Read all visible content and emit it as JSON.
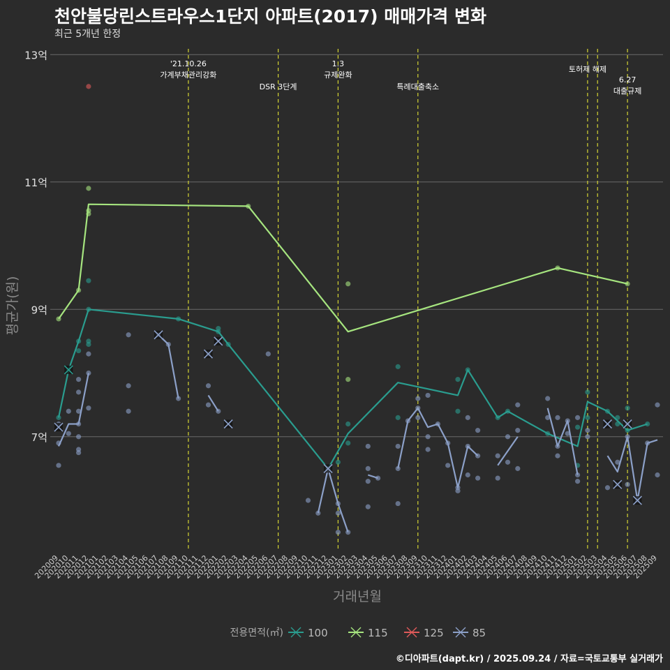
{
  "title": "천안불당린스트라우스1단지 아파트(2017) 매매가격 변화",
  "subtitle": "최근 5개년 한정",
  "caption": "©디아파트(dapt.kr) / 2025.09.24 / 자료=국토교통부 실거래가",
  "chart_data": {
    "type": "line",
    "xlabel": "거래년월",
    "ylabel": "평균가(원)",
    "x_categories": [
      "202009",
      "202010",
      "202011",
      "202012",
      "202101",
      "202102",
      "202103",
      "202104",
      "202105",
      "202106",
      "202107",
      "202108",
      "202109",
      "202110",
      "202111",
      "202112",
      "202201",
      "202202",
      "202203",
      "202204",
      "202205",
      "202206",
      "202207",
      "202208",
      "202209",
      "202210",
      "202211",
      "202212",
      "202301",
      "202302",
      "202303",
      "202304",
      "202305",
      "202306",
      "202307",
      "202308",
      "202309",
      "202310",
      "202311",
      "202312",
      "202401",
      "202402",
      "202403",
      "202404",
      "202405",
      "202406",
      "202407",
      "202408",
      "202409",
      "202410",
      "202411",
      "202412",
      "202501",
      "202502",
      "202503",
      "202504",
      "202505",
      "202506",
      "202507",
      "202508",
      "202509"
    ],
    "y_ticks": [
      {
        "value": 7,
        "label": "7억"
      },
      {
        "value": 9,
        "label": "9억"
      },
      {
        "value": 11,
        "label": "11억"
      },
      {
        "value": 13,
        "label": "13억"
      }
    ],
    "ylim": [
      5.2,
      13.2
    ],
    "grid": true,
    "legend": {
      "title": "전용면적(㎡)",
      "position": "bottom"
    },
    "series": [
      {
        "name": "100",
        "color": "#2a9d8f",
        "line": [
          [
            "202009",
            7.3
          ],
          [
            "202010",
            8.05
          ],
          [
            "202011",
            8.5
          ],
          [
            "202012",
            9.0
          ],
          [
            "202109",
            8.85
          ],
          [
            "202201",
            8.65
          ],
          [
            "202202",
            8.45
          ],
          [
            "202212",
            6.5
          ],
          [
            "202302",
            7.05
          ],
          [
            "202307",
            7.85
          ],
          [
            "202401",
            7.65
          ],
          [
            "202402",
            8.05
          ],
          [
            "202405",
            7.3
          ],
          [
            "202406",
            7.4
          ],
          [
            "202410",
            7.05
          ],
          [
            "202501",
            6.85
          ],
          [
            "202502",
            7.55
          ],
          [
            "202504",
            7.4
          ],
          [
            "202506",
            7.1
          ],
          [
            "202508",
            7.2
          ]
        ],
        "points": [
          [
            "202009",
            7.3
          ],
          [
            "202010",
            8.05
          ],
          [
            "202011",
            8.5
          ],
          [
            "202011",
            8.35
          ],
          [
            "202012",
            9.0
          ],
          [
            "202012",
            9.45
          ],
          [
            "202012",
            8.5
          ],
          [
            "202012",
            8.45
          ],
          [
            "202109",
            8.85
          ],
          [
            "202201",
            8.65
          ],
          [
            "202201",
            8.7
          ],
          [
            "202202",
            8.45
          ],
          [
            "202212",
            6.5
          ],
          [
            "202301",
            6.6
          ],
          [
            "202302",
            7.2
          ],
          [
            "202302",
            6.9
          ],
          [
            "202307",
            8.1
          ],
          [
            "202307",
            7.3
          ],
          [
            "202401",
            7.9
          ],
          [
            "202401",
            7.4
          ],
          [
            "202402",
            8.05
          ],
          [
            "202405",
            7.3
          ],
          [
            "202406",
            7.4
          ],
          [
            "202410",
            7.05
          ],
          [
            "202501",
            6.55
          ],
          [
            "202501",
            7.15
          ],
          [
            "202502",
            7.7
          ],
          [
            "202502",
            7.3
          ],
          [
            "202504",
            7.4
          ],
          [
            "202505",
            7.3
          ],
          [
            "202505",
            7.2
          ],
          [
            "202506",
            7.45
          ],
          [
            "202506",
            7.1
          ],
          [
            "202508",
            7.2
          ]
        ],
        "crosses": [
          [
            "202010",
            8.05
          ]
        ]
      },
      {
        "name": "115",
        "color": "#a6e57f",
        "line": [
          [
            "202009",
            8.85
          ],
          [
            "202011",
            9.3
          ],
          [
            "202012",
            10.65
          ],
          [
            "202204",
            10.62
          ],
          [
            "202302",
            8.65
          ],
          [
            "202411",
            9.65
          ],
          [
            "202506",
            9.4
          ]
        ],
        "points": [
          [
            "202009",
            8.85
          ],
          [
            "202011",
            9.3
          ],
          [
            "202012",
            10.55
          ],
          [
            "202012",
            10.5
          ],
          [
            "202012",
            10.9
          ],
          [
            "202204",
            10.62
          ],
          [
            "202302",
            9.4
          ],
          [
            "202302",
            7.9
          ],
          [
            "202411",
            9.65
          ],
          [
            "202506",
            9.4
          ]
        ],
        "crosses": []
      },
      {
        "name": "125",
        "color": "#e05a5a",
        "line": [],
        "points": [
          [
            "202012",
            12.5
          ]
        ],
        "crosses": []
      },
      {
        "name": "85",
        "color": "#8ca0c8",
        "line": [
          [
            [
              "202009",
              6.85
            ],
            [
              "202010",
              7.2
            ],
            [
              "202011",
              7.2
            ],
            [
              "202012",
              8.0
            ]
          ],
          [
            [
              "202107",
              8.6
            ],
            [
              "202108",
              8.45
            ],
            [
              "202109",
              7.6
            ]
          ],
          [
            [
              "202112",
              7.65
            ],
            [
              "202201",
              7.4
            ]
          ],
          [
            [
              "202211",
              5.8
            ],
            [
              "202212",
              6.5
            ],
            [
              "202301",
              5.95
            ],
            [
              "202302",
              5.5
            ]
          ],
          [
            [
              "202304",
              6.4
            ],
            [
              "202305",
              6.35
            ]
          ],
          [
            [
              "202307",
              6.5
            ],
            [
              "202308",
              7.25
            ],
            [
              "202309",
              7.45
            ],
            [
              "202310",
              7.15
            ],
            [
              "202311",
              7.2
            ],
            [
              "202312",
              6.9
            ],
            [
              "202401",
              6.2
            ],
            [
              "202402",
              6.85
            ],
            [
              "202403",
              6.7
            ]
          ],
          [
            [
              "202405",
              6.55
            ],
            [
              "202407",
              7.0
            ]
          ],
          [
            [
              "202410",
              7.45
            ],
            [
              "202411",
              6.85
            ],
            [
              "202412",
              7.25
            ],
            [
              "202501",
              6.4
            ]
          ],
          [
            [
              "202504",
              6.7
            ],
            [
              "202505",
              6.45
            ],
            [
              "202506",
              7.0
            ],
            [
              "202507",
              6.0
            ],
            [
              "202508",
              6.9
            ],
            [
              "202509",
              6.95
            ]
          ]
        ],
        "points": [
          [
            "202009",
            6.55
          ],
          [
            "202009",
            6.9
          ],
          [
            "202009",
            7.2
          ],
          [
            "202010",
            7.4
          ],
          [
            "202010",
            7.05
          ],
          [
            "202011",
            6.8
          ],
          [
            "202011",
            7.9
          ],
          [
            "202011",
            7.7
          ],
          [
            "202011",
            7.4
          ],
          [
            "202011",
            7.2
          ],
          [
            "202011",
            7.0
          ],
          [
            "202011",
            6.75
          ],
          [
            "202012",
            8.0
          ],
          [
            "202012",
            8.3
          ],
          [
            "202012",
            7.45
          ],
          [
            "202104",
            8.6
          ],
          [
            "202104",
            7.8
          ],
          [
            "202104",
            7.4
          ],
          [
            "202107",
            8.6
          ],
          [
            "202108",
            8.45
          ],
          [
            "202109",
            7.6
          ],
          [
            "202112",
            8.3
          ],
          [
            "202112",
            7.8
          ],
          [
            "202112",
            7.5
          ],
          [
            "202201",
            7.4
          ],
          [
            "202206",
            8.3
          ],
          [
            "202210",
            6.0
          ],
          [
            "202211",
            5.8
          ],
          [
            "202212",
            6.5
          ],
          [
            "202301",
            5.95
          ],
          [
            "202301",
            5.8
          ],
          [
            "202301",
            5.5
          ],
          [
            "202302",
            5.5
          ],
          [
            "202304",
            6.85
          ],
          [
            "202304",
            6.5
          ],
          [
            "202304",
            6.3
          ],
          [
            "202304",
            5.9
          ],
          [
            "202305",
            6.35
          ],
          [
            "202307",
            6.85
          ],
          [
            "202307",
            6.5
          ],
          [
            "202307",
            5.95
          ],
          [
            "202308",
            7.25
          ],
          [
            "202309",
            7.6
          ],
          [
            "202309",
            7.45
          ],
          [
            "202309",
            7.3
          ],
          [
            "202310",
            7.65
          ],
          [
            "202310",
            7.0
          ],
          [
            "202310",
            6.8
          ],
          [
            "202311",
            7.2
          ],
          [
            "202312",
            6.9
          ],
          [
            "202312",
            6.55
          ],
          [
            "202401",
            6.2
          ],
          [
            "202401",
            6.15
          ],
          [
            "202402",
            6.85
          ],
          [
            "202402",
            6.4
          ],
          [
            "202402",
            7.3
          ],
          [
            "202403",
            6.7
          ],
          [
            "202403",
            6.35
          ],
          [
            "202403",
            7.1
          ],
          [
            "202405",
            6.7
          ],
          [
            "202405",
            6.35
          ],
          [
            "202406",
            7.0
          ],
          [
            "202406",
            6.6
          ],
          [
            "202407",
            7.5
          ],
          [
            "202407",
            7.1
          ],
          [
            "202407",
            6.5
          ],
          [
            "202410",
            7.6
          ],
          [
            "202410",
            7.3
          ],
          [
            "202411",
            7.3
          ],
          [
            "202411",
            6.85
          ],
          [
            "202411",
            6.7
          ],
          [
            "202412",
            7.25
          ],
          [
            "202412",
            7.05
          ],
          [
            "202501",
            6.4
          ],
          [
            "202501",
            6.3
          ],
          [
            "202501",
            7.3
          ],
          [
            "202502",
            7.0
          ],
          [
            "202502",
            7.1
          ],
          [
            "202504",
            6.2
          ],
          [
            "202505",
            6.6
          ],
          [
            "202505",
            6.25
          ],
          [
            "202506",
            7.0
          ],
          [
            "202506",
            7.2
          ],
          [
            "202506",
            6.25
          ],
          [
            "202507",
            6.0
          ],
          [
            "202508",
            6.9
          ],
          [
            "202509",
            6.4
          ],
          [
            "202509",
            7.5
          ]
        ],
        "crosses": [
          [
            "202009",
            7.15
          ],
          [
            "202107",
            8.6
          ],
          [
            "202112",
            8.3
          ],
          [
            "202201",
            8.5
          ],
          [
            "202202",
            7.2
          ],
          [
            "202212",
            6.5
          ],
          [
            "202504",
            7.2
          ],
          [
            "202505",
            6.25
          ],
          [
            "202506",
            7.2
          ],
          [
            "202507",
            6.0
          ]
        ]
      }
    ],
    "annotations": [
      {
        "x": "202110",
        "lines": [
          "'21.10.26",
          "가계부채관리강화"
        ],
        "level": 0
      },
      {
        "x": "202207",
        "lines": [
          "DSR 3단계"
        ],
        "level": 2
      },
      {
        "x": "202301",
        "lines": [
          "1.3",
          "규제완화"
        ],
        "level": 0
      },
      {
        "x": "202309",
        "lines": [
          "특례대출축소"
        ],
        "level": 2
      },
      {
        "x": "202502",
        "lines": [
          "토허제 해제"
        ],
        "level": 1
      },
      {
        "x": "202503",
        "lines": [],
        "level": 0
      },
      {
        "x": "202506",
        "lines": [
          "6.27",
          "대출규제"
        ],
        "level": 3
      }
    ]
  }
}
